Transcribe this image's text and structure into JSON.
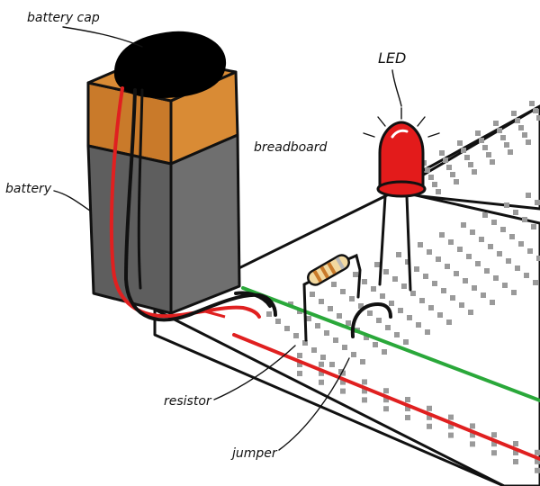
{
  "labels": {
    "battery_cap": "battery cap",
    "battery": "battery",
    "breadboard": "breadboard",
    "led": "LED",
    "resistor": "resistor",
    "jumper": "jumper"
  },
  "colors": {
    "outline": "#111111",
    "board": "#ffffff",
    "hole": "#9a9a9a",
    "battery_copper": "#c97a2a",
    "battery_copper_light": "#d98b35",
    "battery_body": "#5e5e5e",
    "battery_body_light": "#6f6f6f",
    "cap": "#000000",
    "wire_red": "#e02020",
    "wire_black": "#111111",
    "rail_green": "#2aa83a",
    "rail_red": "#e02020",
    "led_red": "#e31b1b",
    "resistor_body": "#f2d9a0"
  },
  "icons": {
    "battery": "battery-9v-icon",
    "led": "led-icon",
    "resistor": "resistor-icon",
    "breadboard": "breadboard-icon"
  }
}
